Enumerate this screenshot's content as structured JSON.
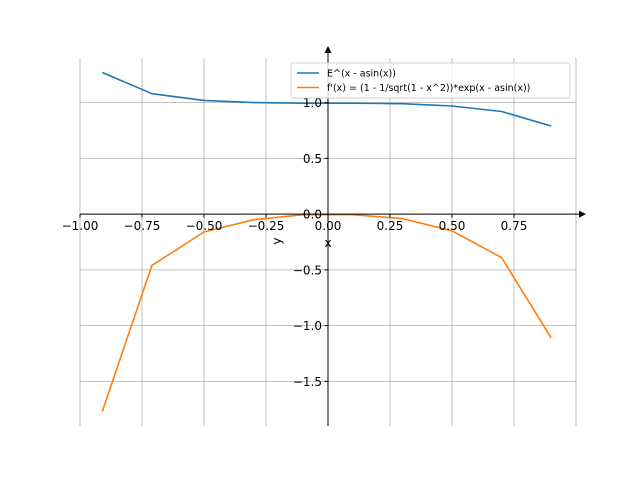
{
  "chart_data": {
    "type": "line",
    "title": "",
    "xlabel": "x",
    "ylabel": "y",
    "xlim": [
      -1.0,
      1.0
    ],
    "ylim": [
      -1.9,
      1.4
    ],
    "grid": true,
    "legend_position": "top-right",
    "x_ticks": [
      -1.0,
      -0.75,
      -0.5,
      -0.25,
      0.0,
      0.25,
      0.5,
      0.75
    ],
    "x_tick_labels": [
      "−1.00",
      "−0.75",
      "−0.50",
      "−0.25",
      "0.00",
      "0.25",
      "0.50",
      "0.75"
    ],
    "y_ticks": [
      -1.5,
      -1.0,
      -0.5,
      0.0,
      0.5,
      1.0
    ],
    "y_tick_labels": [
      "−1.5",
      "−1.0",
      "−0.5",
      "0.0",
      "0.5",
      "1.0"
    ],
    "series": [
      {
        "name": "E^(x - asin(x))",
        "color": "#1f77b4",
        "x": [
          -0.91,
          -0.71,
          -0.5,
          -0.3,
          -0.1,
          0.1,
          0.3,
          0.5,
          0.7,
          0.9
        ],
        "y": [
          1.27,
          1.08,
          1.02,
          1.0,
          0.995,
          0.995,
          0.99,
          0.97,
          0.92,
          0.79
        ]
      },
      {
        "name": "f'(x) = (1 - 1/sqrt(1 - x^2))*exp(x - asin(x))",
        "color": "#ff7f0e",
        "x": [
          -0.91,
          -0.71,
          -0.5,
          -0.3,
          -0.1,
          0.1,
          0.3,
          0.5,
          0.7,
          0.9
        ],
        "y": [
          -1.77,
          -0.46,
          -0.16,
          -0.05,
          -0.005,
          -0.005,
          -0.04,
          -0.15,
          -0.39,
          -1.11
        ]
      }
    ]
  }
}
